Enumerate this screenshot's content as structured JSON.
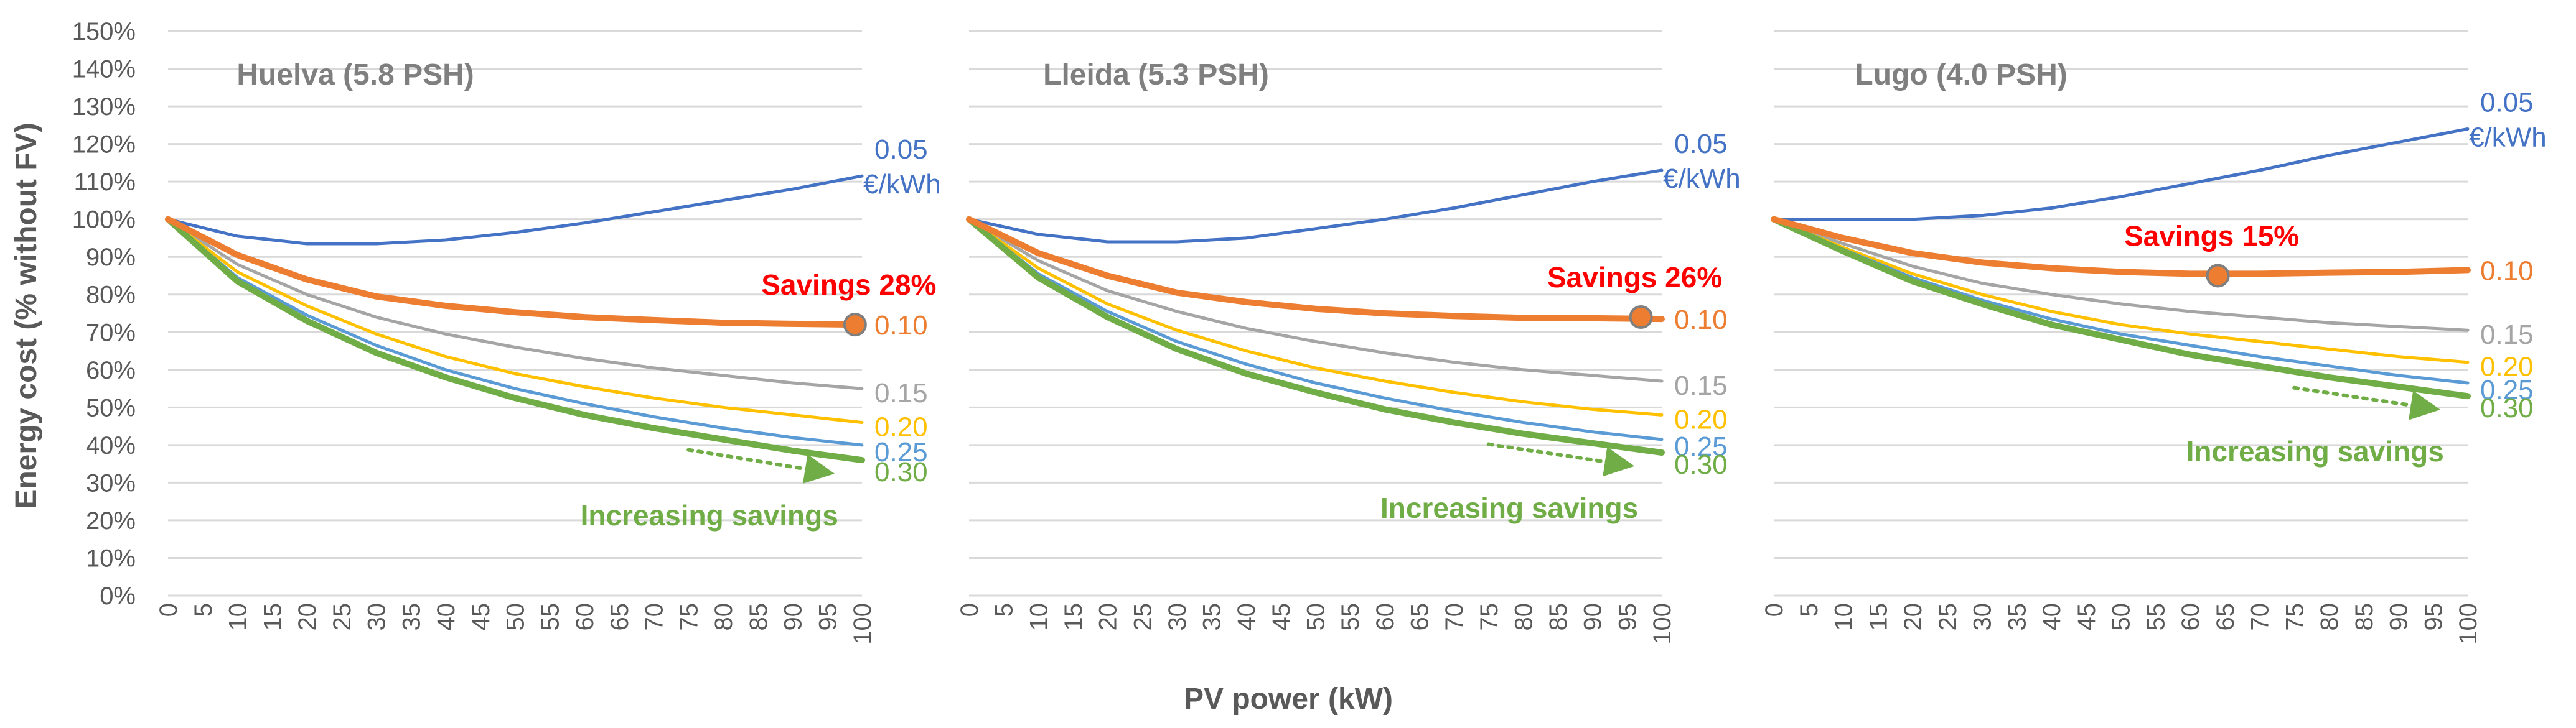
{
  "chart_data": {
    "type": "line",
    "ylabel": "Energy cost (% without FV)",
    "xlabel": "PV power (kW)",
    "ylim": [
      0,
      150
    ],
    "xlim": [
      0,
      100
    ],
    "y_ticks": [
      "0%",
      "10%",
      "20%",
      "30%",
      "40%",
      "50%",
      "60%",
      "70%",
      "80%",
      "90%",
      "100%",
      "110%",
      "120%",
      "130%",
      "140%",
      "150%"
    ],
    "x_ticks": [
      "0",
      "5",
      "10",
      "15",
      "20",
      "25",
      "30",
      "35",
      "40",
      "45",
      "50",
      "55",
      "60",
      "65",
      "70",
      "75",
      "80",
      "85",
      "90",
      "95",
      "100"
    ],
    "grid": true,
    "series_colors": {
      "0.05": "#4472c4",
      "0.10": "#ed7d31",
      "0.15": "#a5a5a5",
      "0.20": "#ffc000",
      "0.25": "#5b9bd5",
      "0.30": "#70ad47"
    },
    "increasing_label": "Increasing savings",
    "panels": [
      {
        "title": "Huelva (5.8 PSH)",
        "x": [
          0,
          10,
          20,
          30,
          40,
          50,
          60,
          70,
          80,
          90,
          100
        ],
        "series": [
          {
            "name": "0.05",
            "unit": "€/kWh",
            "values": [
              100,
              95.5,
              93.5,
              93.5,
              94.5,
              96.5,
              99,
              102,
              105,
              108,
              111.5
            ]
          },
          {
            "name": "0.10",
            "values": [
              100,
              90.5,
              84,
              79.5,
              77,
              75.3,
              74,
              73.2,
              72.5,
              72.2,
              72
            ]
          },
          {
            "name": "0.15",
            "values": [
              100,
              88,
              80,
              74,
              69.5,
              66,
              63,
              60.5,
              58.5,
              56.5,
              55
            ]
          },
          {
            "name": "0.20",
            "values": [
              100,
              86,
              77,
              69.5,
              63.5,
              59,
              55.5,
              52.5,
              50,
              48,
              46
            ]
          },
          {
            "name": "0.25",
            "values": [
              100,
              84.5,
              74.5,
              66.5,
              60,
              55,
              51,
              47.5,
              44.5,
              42,
              40
            ]
          },
          {
            "name": "0.30",
            "values": [
              100,
              83.5,
              73,
              64.5,
              58,
              52.5,
              48,
              44.5,
              41.5,
              38.5,
              36
            ]
          }
        ],
        "savings": {
          "text": "Savings 28%",
          "x": 99,
          "y": 72
        }
      },
      {
        "title": "Lleida (5.3 PSH)",
        "x": [
          0,
          10,
          20,
          30,
          40,
          50,
          60,
          70,
          80,
          90,
          100
        ],
        "series": [
          {
            "name": "0.05",
            "unit": "€/kWh",
            "values": [
              100,
              96,
              94,
              94,
              95,
              97.5,
              100,
              103,
              106.5,
              110,
              113
            ]
          },
          {
            "name": "0.10",
            "values": [
              100,
              91,
              85,
              80.5,
              78,
              76.2,
              75,
              74.3,
              73.8,
              73.7,
              73.5
            ]
          },
          {
            "name": "0.15",
            "values": [
              100,
              89,
              81,
              75.5,
              71,
              67.5,
              64.5,
              62,
              60,
              58.5,
              57
            ]
          },
          {
            "name": "0.20",
            "values": [
              100,
              87,
              77.5,
              70.5,
              65,
              60.5,
              57,
              54,
              51.5,
              49.5,
              48
            ]
          },
          {
            "name": "0.25",
            "values": [
              100,
              85.5,
              75.5,
              67.5,
              61.5,
              56.5,
              52.5,
              49,
              46,
              43.5,
              41.5
            ]
          },
          {
            "name": "0.30",
            "values": [
              100,
              84.5,
              74,
              65.5,
              59,
              54,
              49.5,
              46,
              43,
              40.5,
              38
            ]
          }
        ],
        "savings": {
          "text": "Savings 26%",
          "x": 97,
          "y": 74
        }
      },
      {
        "title": "Lugo (4.0 PSH)",
        "x": [
          0,
          10,
          20,
          30,
          40,
          50,
          60,
          70,
          80,
          90,
          100
        ],
        "series": [
          {
            "name": "0.05",
            "unit": "€/kWh",
            "values": [
              100,
              100,
              100,
              101,
              103,
              106,
              109.5,
              113,
              117,
              120.5,
              124
            ]
          },
          {
            "name": "0.10",
            "values": [
              100,
              95,
              91,
              88.5,
              87,
              86,
              85.5,
              85.5,
              85.8,
              86,
              86.5
            ]
          },
          {
            "name": "0.15",
            "values": [
              100,
              93.5,
              87.5,
              83,
              80,
              77.5,
              75.5,
              74,
              72.5,
              71.5,
              70.5
            ]
          },
          {
            "name": "0.20",
            "values": [
              100,
              92.5,
              85.5,
              80,
              75.5,
              72,
              69.5,
              67.5,
              65.5,
              63.5,
              62
            ]
          },
          {
            "name": "0.25",
            "values": [
              100,
              92,
              84.5,
              78.5,
              73.5,
              69.5,
              66.5,
              63.5,
              61,
              58.5,
              56.5
            ]
          },
          {
            "name": "0.30",
            "values": [
              100,
              91.5,
              83.5,
              77.5,
              72,
              68,
              64,
              61,
              58,
              55.5,
              53
            ]
          }
        ],
        "savings": {
          "text": "Savings 15%",
          "x": 64,
          "y": 85
        }
      }
    ]
  }
}
